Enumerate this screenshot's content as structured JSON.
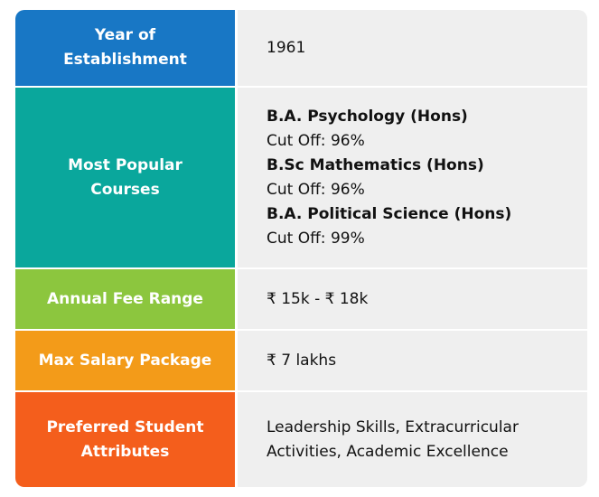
{
  "rows": [
    {
      "label": "Year of Establishment",
      "value": "1961",
      "color": "#1877c5"
    },
    {
      "label": "Most Popular Courses",
      "color": "#0aa79c",
      "courses": [
        {
          "name": "B.A. Psychology (Hons)",
          "cutoff": "Cut Off: 96%"
        },
        {
          "name": "B.Sc Mathematics (Hons)",
          "cutoff": "Cut Off: 96%"
        },
        {
          "name": "B.A. Political Science (Hons)",
          "cutoff": "Cut Off: 99%"
        }
      ]
    },
    {
      "label": "Annual Fee Range",
      "value": "₹ 15k - ₹ 18k",
      "color": "#8cc63e"
    },
    {
      "label": "Max Salary Package",
      "value": "₹ 7 lakhs",
      "color": "#f39b19"
    },
    {
      "label": "Preferred Student Attributes",
      "value": "Leadership Skills, Extracurricular Activities, Academic Excellence",
      "color": "#f45e1c"
    }
  ]
}
